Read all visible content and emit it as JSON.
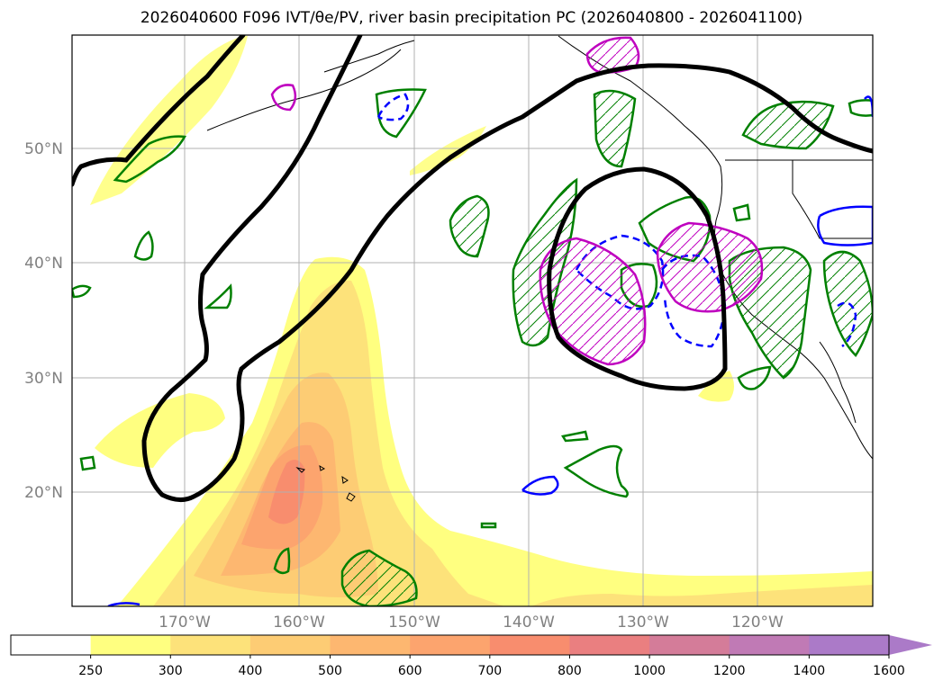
{
  "title": "2026040600 F096 IVT/θe/PV, river basin precipitation PC (2026040800 - 2026041100)",
  "lat_labels": [
    "50°N",
    "40°N",
    "30°N",
    "20°N"
  ],
  "lon_labels": [
    "170°W",
    "160°W",
    "150°W",
    "140°W",
    "130°W",
    "120°W"
  ],
  "colorbar": {
    "ticks": [
      "250",
      "300",
      "400",
      "500",
      "600",
      "700",
      "800",
      "1000",
      "1200",
      "1400",
      "1600"
    ],
    "colors": [
      "#ffffff",
      "#ffff80",
      "#fde27a",
      "#fdcc74",
      "#fdb770",
      "#fca46e",
      "#f88d6e",
      "#ea7f80",
      "#d47c99",
      "#c07ab5",
      "#ab7ac8"
    ],
    "extend": "max"
  },
  "colors": {
    "ivt_low": "#ffff80",
    "ivt_mid": "#fdcc74",
    "ivt_high": "#f89370",
    "green_contour": "#008000",
    "blue_contour": "#0000ff",
    "magenta_contour": "#bf00bf",
    "black_contour": "#000000"
  }
}
